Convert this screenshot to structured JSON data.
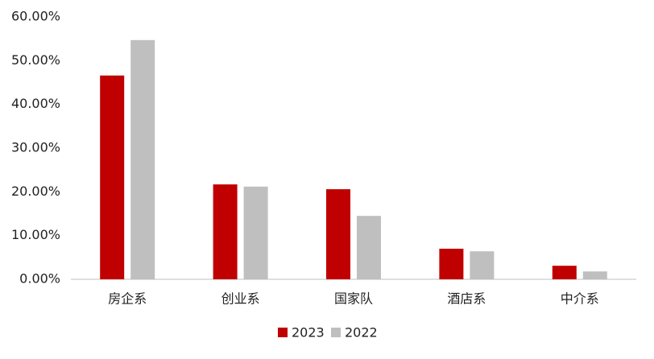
{
  "chart_data": {
    "type": "bar",
    "categories": [
      "房企系",
      "创业系",
      "国家队",
      "酒店系",
      "中介系"
    ],
    "series": [
      {
        "name": "2023",
        "color": "#c00000",
        "values": [
          46.6,
          21.7,
          20.6,
          7.0,
          3.1
        ]
      },
      {
        "name": "2022",
        "color": "#bfbfbf",
        "values": [
          54.7,
          21.2,
          14.5,
          6.4,
          1.8
        ]
      }
    ],
    "ylim": [
      0,
      60
    ],
    "yticks": [
      {
        "value": 0,
        "label": "0.00%"
      },
      {
        "value": 10,
        "label": "10.00%"
      },
      {
        "value": 20,
        "label": "20.00%"
      },
      {
        "value": 30,
        "label": "30.00%"
      },
      {
        "value": 40,
        "label": "40.00%"
      },
      {
        "value": 50,
        "label": "50.00%"
      },
      {
        "value": 60,
        "label": "60.00%"
      }
    ],
    "grid": false,
    "legend": "bottom"
  }
}
